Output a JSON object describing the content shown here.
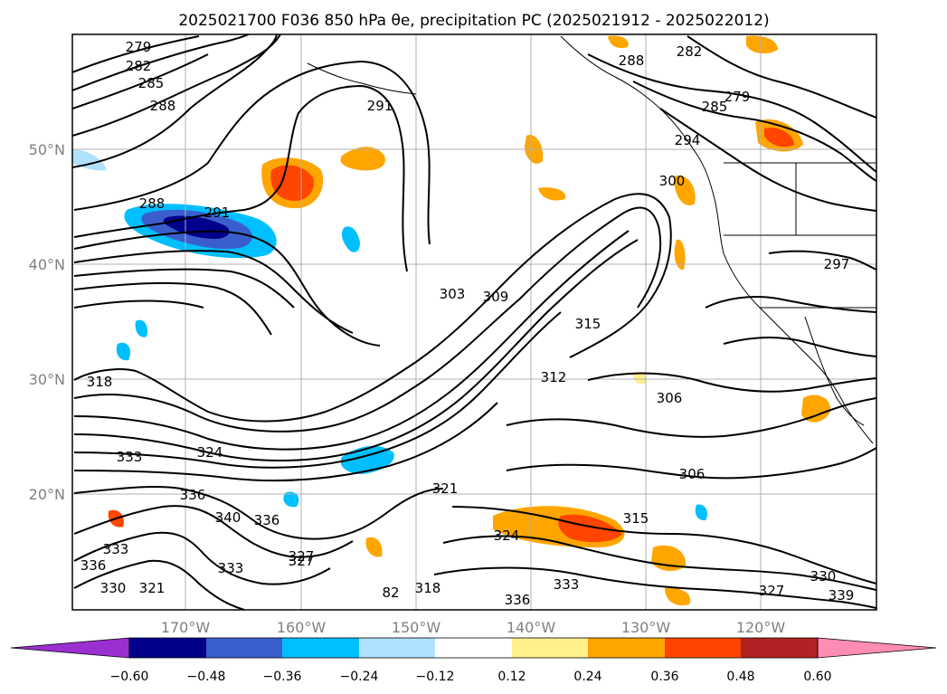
{
  "title": "2025021700 F036 850 hPa θe, precipitation PC (2025021912 - 2025022012)",
  "map": {
    "lon_ticks": [
      "170°W",
      "160°W",
      "150°W",
      "140°W",
      "130°W",
      "120°W"
    ],
    "lat_ticks": [
      "50°N",
      "40°N",
      "30°N",
      "20°N"
    ],
    "contour_labels": [
      "279",
      "282",
      "285",
      "288",
      "291",
      "288",
      "291",
      "303",
      "309",
      "315",
      "312",
      "306",
      "306",
      "300",
      "297",
      "285",
      "279",
      "282",
      "288",
      "294",
      "318",
      "333",
      "324",
      "336",
      "340",
      "336",
      "333",
      "336",
      "330",
      "327",
      "321",
      "333",
      "327",
      "318",
      "321",
      "324",
      "315",
      "333",
      "336",
      "327",
      "330",
      "339",
      "82"
    ]
  },
  "colorbar": {
    "labels": [
      "−0.60",
      "−0.48",
      "−0.36",
      "−0.24",
      "−0.12",
      "0.12",
      "0.24",
      "0.36",
      "0.48",
      "0.60"
    ],
    "colors": [
      "#9b30d0",
      "#00008b",
      "#3a5fcd",
      "#00bfff",
      "#b0e2ff",
      "#ffffff",
      "#fff08c",
      "#ffa500",
      "#ff4500",
      "#b22222",
      "#ff8cb4"
    ]
  },
  "colors": {
    "frame": "#000000",
    "grid": "#b0b0b0",
    "land": "#ffffff"
  }
}
